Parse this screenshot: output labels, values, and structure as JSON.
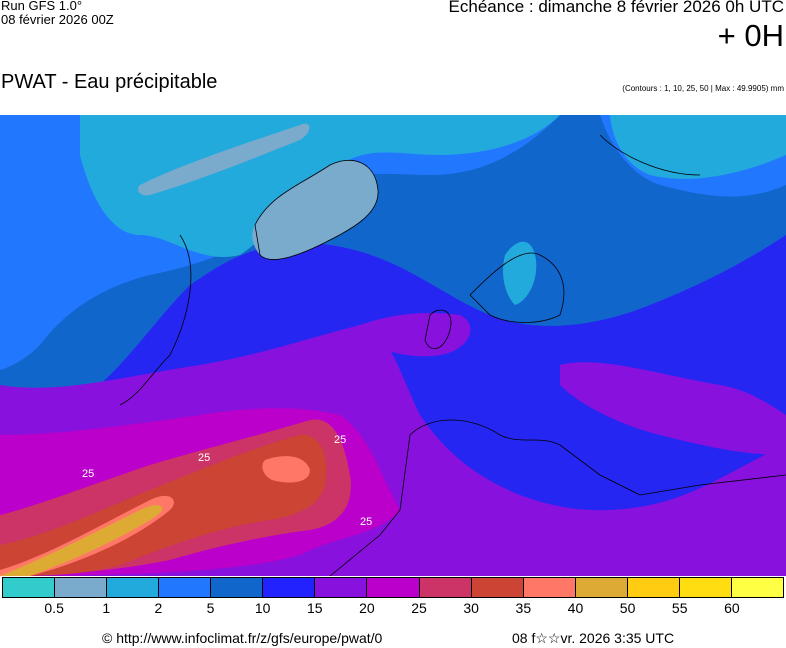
{
  "header": {
    "run": "Run GFS 1.0°",
    "run_date": "08 février 2026 00Z",
    "title": "PWAT - Eau précipitable",
    "echeance": "Echéance : dimanche 8 février 2026 0h UTC",
    "hour": "+ 0H",
    "contours": "(Contours : 1, 10, 25, 50 | Max : 49.9905) mm"
  },
  "map": {
    "contour_labels": [
      "25",
      "25",
      "25",
      "25"
    ],
    "ocean_color": "#2626f2"
  },
  "legend": {
    "colors": [
      "#33cccc",
      "#7aaacc",
      "#22aadd",
      "#2277ff",
      "#1166cc",
      "#2222ff",
      "#8811dd",
      "#bb00cc",
      "#cc3366",
      "#cc4433",
      "#ff7766",
      "#ddaa33",
      "#ffcc11",
      "#ffdd11",
      "#ffff44"
    ],
    "ticks": [
      "0.5",
      "1",
      "2",
      "5",
      "10",
      "15",
      "20",
      "25",
      "30",
      "35",
      "40",
      "50",
      "55",
      "60"
    ]
  },
  "footer": {
    "copyright": "© http://www.infoclimat.fr/z/gfs/europe/pwat/0",
    "generated": "08 f☆☆vr. 2026  3:35 UTC"
  }
}
